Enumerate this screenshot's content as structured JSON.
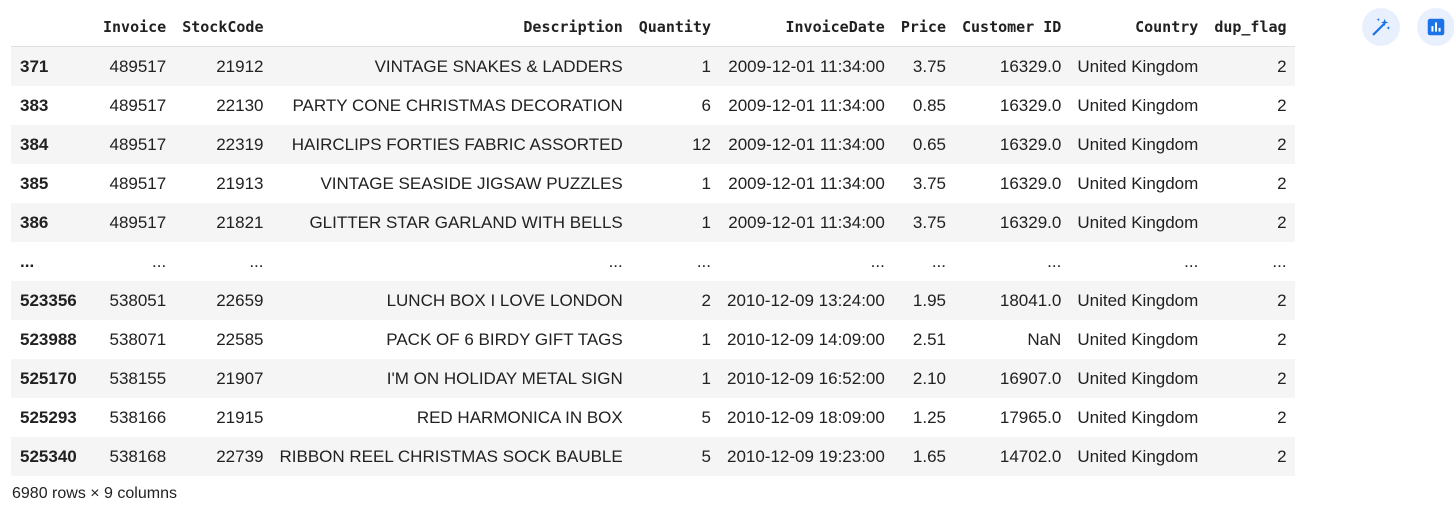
{
  "table": {
    "index_header": "",
    "columns": [
      "Invoice",
      "StockCode",
      "Description",
      "Quantity",
      "InvoiceDate",
      "Price",
      "Customer ID",
      "Country",
      "dup_flag"
    ],
    "rows_top": [
      {
        "index": "371",
        "cells": [
          "489517",
          "21912",
          "VINTAGE SNAKES & LADDERS",
          "1",
          "2009-12-01 11:34:00",
          "3.75",
          "16329.0",
          "United Kingdom",
          "2"
        ]
      },
      {
        "index": "383",
        "cells": [
          "489517",
          "22130",
          "PARTY CONE CHRISTMAS DECORATION",
          "6",
          "2009-12-01 11:34:00",
          "0.85",
          "16329.0",
          "United Kingdom",
          "2"
        ]
      },
      {
        "index": "384",
        "cells": [
          "489517",
          "22319",
          "HAIRCLIPS FORTIES FABRIC ASSORTED",
          "12",
          "2009-12-01 11:34:00",
          "0.65",
          "16329.0",
          "United Kingdom",
          "2"
        ]
      },
      {
        "index": "385",
        "cells": [
          "489517",
          "21913",
          "VINTAGE SEASIDE JIGSAW PUZZLES",
          "1",
          "2009-12-01 11:34:00",
          "3.75",
          "16329.0",
          "United Kingdom",
          "2"
        ]
      },
      {
        "index": "386",
        "cells": [
          "489517",
          "21821",
          "GLITTER STAR GARLAND WITH BELLS",
          "1",
          "2009-12-01 11:34:00",
          "3.75",
          "16329.0",
          "United Kingdom",
          "2"
        ]
      }
    ],
    "ellipsis": {
      "index": "...",
      "cells": [
        "...",
        "...",
        "...",
        "...",
        "...",
        "...",
        "...",
        "...",
        "..."
      ]
    },
    "rows_bottom": [
      {
        "index": "523356",
        "cells": [
          "538051",
          "22659",
          "LUNCH BOX I LOVE LONDON",
          "2",
          "2010-12-09 13:24:00",
          "1.95",
          "18041.0",
          "United Kingdom",
          "2"
        ]
      },
      {
        "index": "523988",
        "cells": [
          "538071",
          "22585",
          "PACK OF 6 BIRDY GIFT TAGS",
          "1",
          "2010-12-09 14:09:00",
          "2.51",
          "NaN",
          "United Kingdom",
          "2"
        ]
      },
      {
        "index": "525170",
        "cells": [
          "538155",
          "21907",
          "I'M ON HOLIDAY METAL SIGN",
          "1",
          "2010-12-09 16:52:00",
          "2.10",
          "16907.0",
          "United Kingdom",
          "2"
        ]
      },
      {
        "index": "525293",
        "cells": [
          "538166",
          "21915",
          "RED HARMONICA IN BOX",
          "5",
          "2010-12-09 18:09:00",
          "1.25",
          "17965.0",
          "United Kingdom",
          "2"
        ]
      },
      {
        "index": "525340",
        "cells": [
          "538168",
          "22739",
          "RIBBON REEL CHRISTMAS SOCK BAUBLE",
          "5",
          "2010-12-09 19:23:00",
          "1.65",
          "14702.0",
          "United Kingdom",
          "2"
        ]
      }
    ]
  },
  "footer": {
    "text": "6980 rows × 9 columns"
  },
  "toolbar": {
    "icons": [
      "magic-wand-icon",
      "bar-chart-icon"
    ],
    "accent_color": "#1a73e8",
    "button_bg": "#e8f0fe"
  }
}
